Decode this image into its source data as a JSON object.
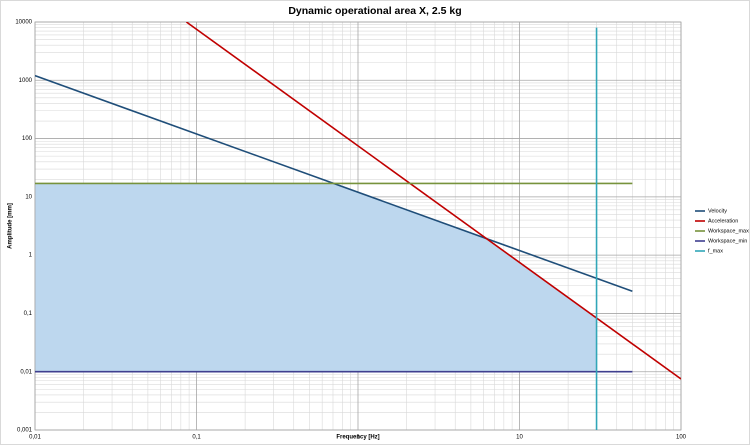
{
  "chart_data": {
    "type": "line",
    "title": "Dynamic operational area X, 2.5 kg",
    "x_label": "Frequency [Hz]",
    "y_label": "Amplitude [mm]",
    "log_x": true,
    "log_y": true,
    "grid": true,
    "minor_grid": true,
    "legend": "right",
    "xlim": [
      0.01,
      100
    ],
    "ylim": [
      0.001,
      10000
    ],
    "xticks": [
      {
        "value": 0.01,
        "label": "0,01"
      },
      {
        "value": 0.1,
        "label": "0,1"
      },
      1,
      10,
      100
    ],
    "yticks": [
      {
        "value": 0.001,
        "label": "0,001"
      },
      {
        "value": 0.01,
        "label": "0,01"
      },
      {
        "value": 0.1,
        "label": "0,1"
      },
      1,
      10,
      100,
      1000,
      10000
    ],
    "area": {
      "color": "#bdd7ee",
      "x": [
        0.01,
        0.706,
        6.25,
        30,
        30,
        0.01
      ],
      "values": [
        17,
        17,
        1.92,
        0.0833,
        0.01,
        0.01
      ]
    },
    "series": [
      {
        "name": "Velocity",
        "color": "#1f4e79",
        "x": [
          0.01,
          50
        ],
        "values": [
          1200,
          0.24
        ]
      },
      {
        "name": "Acceleration",
        "color": "#c00000",
        "x": [
          0.0866,
          100
        ],
        "values": [
          10000,
          0.0075
        ]
      },
      {
        "name": "Workspace_max",
        "color": "#77933c",
        "x": [
          0.01,
          50
        ],
        "values": [
          17,
          17
        ]
      },
      {
        "name": "Workspace_min",
        "color": "#3f3f8f",
        "x": [
          0.01,
          50
        ],
        "values": [
          0.01,
          0.01
        ]
      },
      {
        "name": "f_max",
        "color": "#31a6b8",
        "x": [
          30,
          30
        ],
        "values": [
          0.001,
          8000
        ]
      }
    ]
  }
}
